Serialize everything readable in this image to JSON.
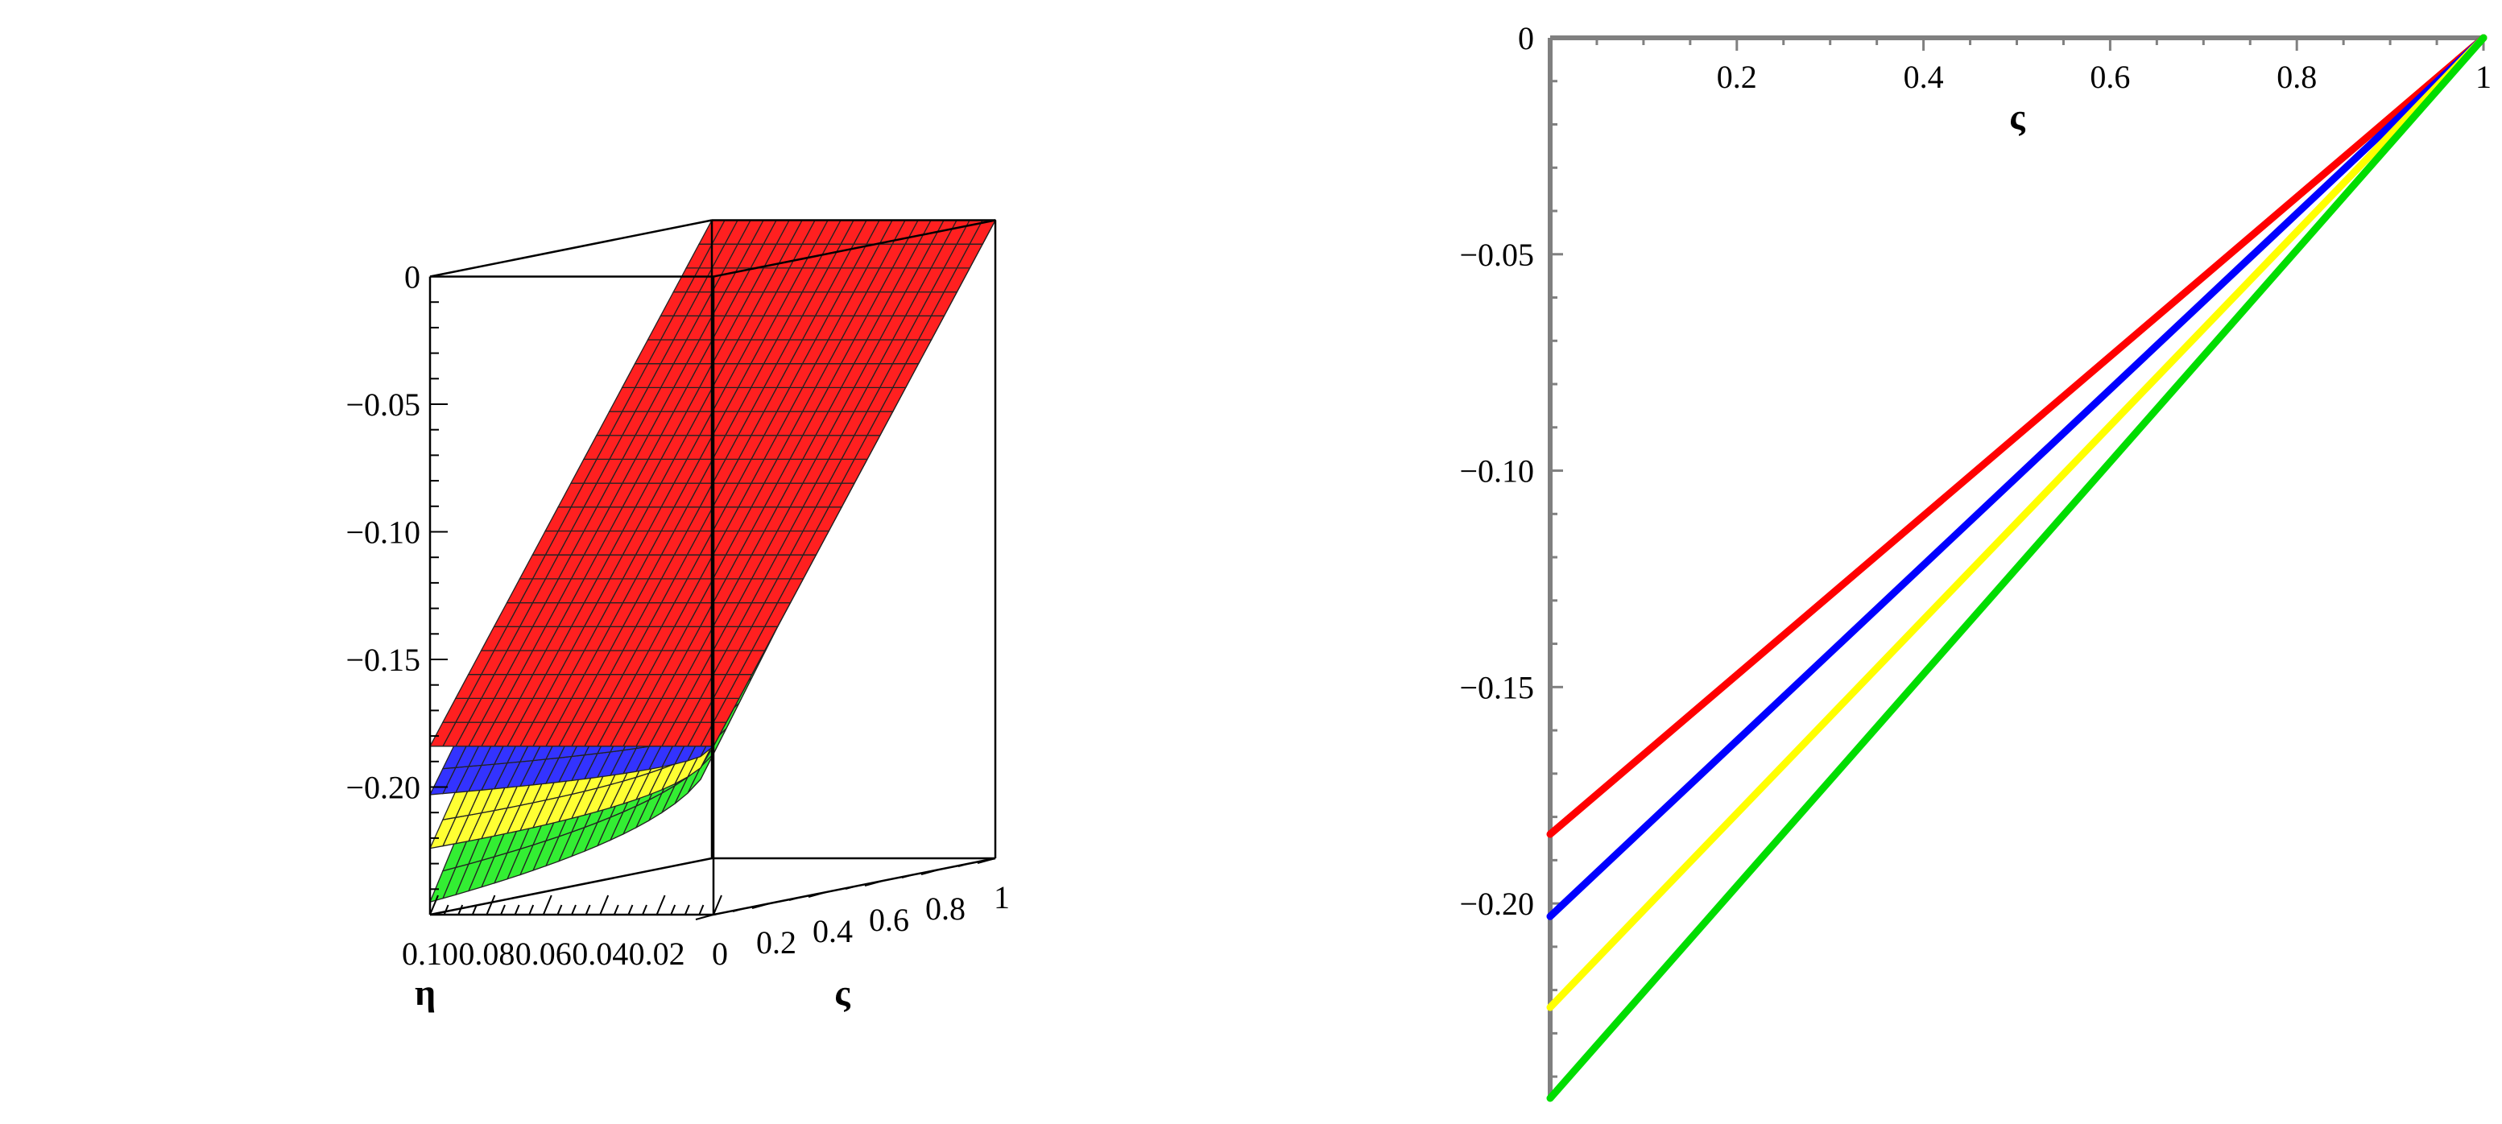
{
  "chart_data": [
    {
      "type": "surface3d",
      "zlim": [
        -0.25,
        0
      ],
      "z_ticks": [
        0,
        -0.05,
        -0.1,
        -0.15,
        -0.2
      ],
      "z_tick_labels": [
        "0",
        "−0.05",
        "−0.10",
        "−0.15",
        "−0.20"
      ],
      "eta_ticks": [
        0.1,
        0.08,
        0.06,
        0.04,
        0.02
      ],
      "eta_tick_labels": [
        "0.10",
        "0.08",
        "0.06",
        "0.04",
        "0.02"
      ],
      "xi_ticks": [
        0,
        0.2,
        0.4,
        0.6,
        0.8,
        1
      ],
      "xi_tick_labels": [
        "0",
        "0.2",
        "0.4",
        "0.6",
        "0.8",
        "1"
      ],
      "eta_label": "η",
      "xi_label": "ς",
      "surfaces": [
        {
          "color": "#ff2020",
          "values_at_xi0_vs_eta": [
            [
              0.0,
              -0.184
            ],
            [
              0.1,
              -0.184
            ]
          ]
        },
        {
          "color": "#3333ff",
          "values_at_xi0_vs_eta": [
            [
              0.0,
              -0.184
            ],
            [
              0.1,
              -0.203
            ]
          ]
        },
        {
          "color": "#ffff33",
          "values_at_xi0_vs_eta": [
            [
              0.0,
              -0.184
            ],
            [
              0.1,
              -0.224
            ]
          ]
        },
        {
          "color": "#33ee33",
          "values_at_xi0_vs_eta": [
            [
              0.0,
              -0.184
            ],
            [
              0.1,
              -0.245
            ]
          ]
        }
      ]
    },
    {
      "type": "line",
      "xlim": [
        0,
        1
      ],
      "ylim": [
        -0.245,
        0
      ],
      "x_ticks": [
        0.2,
        0.4,
        0.6,
        0.8,
        1
      ],
      "x_tick_labels": [
        "0.2",
        "0.4",
        "0.6",
        "0.8",
        "1"
      ],
      "y_ticks": [
        0,
        -0.05,
        -0.1,
        -0.15,
        -0.2
      ],
      "y_tick_labels": [
        "0",
        "−0.05",
        "−0.10",
        "−0.15",
        "−0.20"
      ],
      "xlabel": "ς",
      "series": [
        {
          "color": "#ff0000",
          "x": [
            0,
            1
          ],
          "y": [
            -0.184,
            0
          ]
        },
        {
          "color": "#0000ff",
          "x": [
            0,
            1
          ],
          "y": [
            -0.203,
            0
          ]
        },
        {
          "color": "#ffff00",
          "x": [
            0,
            1
          ],
          "y": [
            -0.224,
            0
          ]
        },
        {
          "color": "#00dd00",
          "x": [
            0,
            1
          ],
          "y": [
            -0.245,
            0
          ]
        }
      ]
    }
  ]
}
